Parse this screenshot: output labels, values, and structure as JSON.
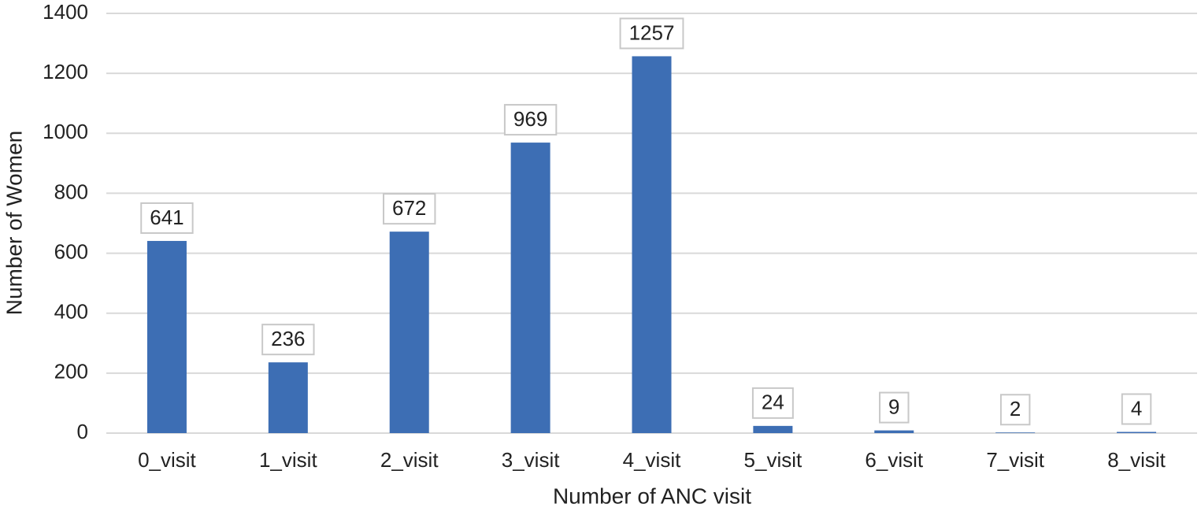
{
  "chart_data": {
    "type": "bar",
    "x_label": "Number of ANC visit",
    "y_label": "Number of Women",
    "categories": [
      "0_visit",
      "1_visit",
      "2_visit",
      "3_visit",
      "4_visit",
      "5_visit",
      "6_visit",
      "7_visit",
      "8_visit"
    ],
    "values": [
      641,
      236,
      672,
      969,
      1257,
      24,
      9,
      2,
      4
    ],
    "color": "#3d6eb4",
    "ylim": [
      0,
      1400
    ],
    "yticks": [
      0,
      200,
      400,
      600,
      800,
      1000,
      1200,
      1400
    ],
    "grid": true
  }
}
